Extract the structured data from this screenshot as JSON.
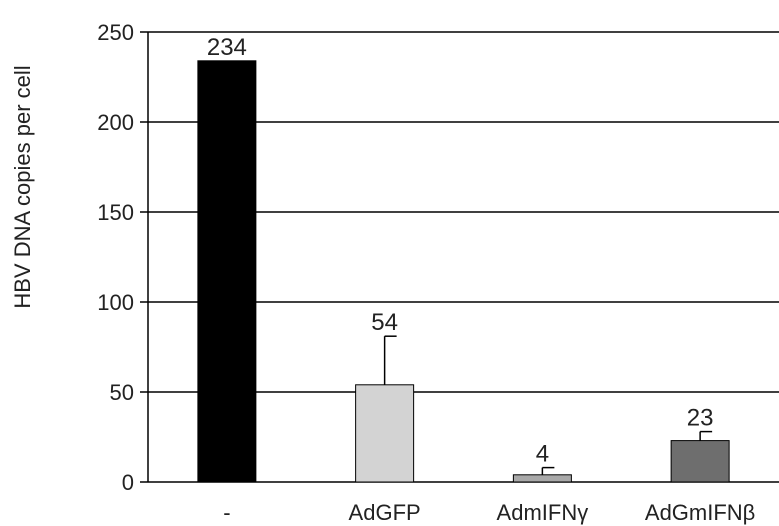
{
  "chart_data": {
    "type": "bar",
    "title": "",
    "xlabel": "",
    "ylabel": "HBV DNA copies per cell",
    "ylim": [
      0,
      250
    ],
    "yticks": [
      0,
      50,
      100,
      150,
      200,
      250
    ],
    "grid": true,
    "categories": [
      "-",
      "AdGFP",
      "AdmIFNγ",
      "AdGmIFNβ"
    ],
    "values": [
      234,
      54,
      4,
      23
    ],
    "error_upper": [
      null,
      81,
      8,
      28
    ],
    "data_labels": [
      "234",
      "54",
      "4",
      "23"
    ],
    "colors": [
      "#000000",
      "#d3d3d3",
      "#a9a9a9",
      "#6e6e6e"
    ]
  }
}
